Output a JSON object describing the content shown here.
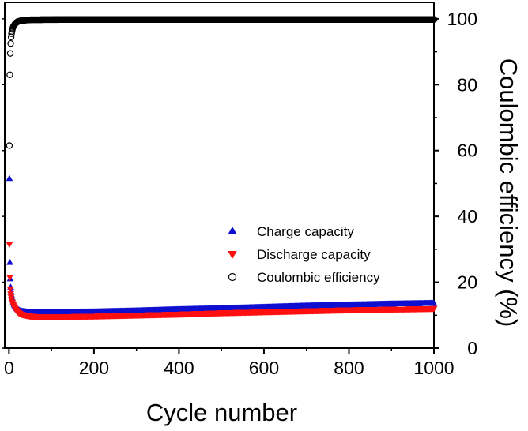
{
  "chart_data": {
    "type": "scatter",
    "title": "",
    "xlabel": "Cycle number",
    "ylabel_left": "",
    "ylabel_right": "Coulombic efficiency (%)",
    "xlim": [
      -10,
      1000
    ],
    "ylim_right": [
      0,
      105
    ],
    "ylim_left": [
      0,
      105
    ],
    "x_ticks": [
      0,
      200,
      400,
      600,
      800,
      1000
    ],
    "y_ticks_right": [
      0,
      20,
      40,
      60,
      80,
      100
    ],
    "left_axis_tick_labels": false,
    "grid": false,
    "legend_position": "right-center",
    "series": [
      {
        "name": "Charge capacity",
        "axis": "left",
        "marker": "triangle-up",
        "color": "#1010d0",
        "points": [
          [
            1,
            51.5
          ],
          [
            2,
            26
          ],
          [
            3,
            21
          ],
          [
            4,
            18.5
          ],
          [
            5,
            17
          ],
          [
            6,
            16
          ],
          [
            8,
            15
          ],
          [
            10,
            14
          ],
          [
            12,
            13.3
          ],
          [
            15,
            12.6
          ],
          [
            20,
            11.8
          ],
          [
            25,
            11.4
          ],
          [
            30,
            11.2
          ],
          [
            40,
            11
          ],
          [
            50,
            10.9
          ],
          [
            60,
            10.85
          ],
          [
            80,
            10.8
          ],
          [
            100,
            10.85
          ],
          [
            150,
            10.9
          ],
          [
            200,
            11
          ],
          [
            300,
            11.3
          ],
          [
            400,
            11.7
          ],
          [
            500,
            12
          ],
          [
            600,
            12.4
          ],
          [
            700,
            12.8
          ],
          [
            800,
            13.1
          ],
          [
            900,
            13.4
          ],
          [
            1000,
            13.6
          ]
        ]
      },
      {
        "name": "Discharge capacity",
        "axis": "left",
        "marker": "triangle-down",
        "color": "#ff1010",
        "points": [
          [
            1,
            31.5
          ],
          [
            2,
            21.5
          ],
          [
            3,
            18
          ],
          [
            4,
            16.5
          ],
          [
            5,
            15.5
          ],
          [
            6,
            14.8
          ],
          [
            8,
            14
          ],
          [
            10,
            13.2
          ],
          [
            12,
            12.5
          ],
          [
            15,
            11.8
          ],
          [
            20,
            11
          ],
          [
            25,
            10.5
          ],
          [
            30,
            10.2
          ],
          [
            40,
            9.9
          ],
          [
            50,
            9.7
          ],
          [
            60,
            9.6
          ],
          [
            80,
            9.5
          ],
          [
            100,
            9.5
          ],
          [
            150,
            9.6
          ],
          [
            200,
            9.7
          ],
          [
            300,
            10
          ],
          [
            400,
            10.3
          ],
          [
            500,
            10.7
          ],
          [
            600,
            11
          ],
          [
            700,
            11.3
          ],
          [
            800,
            11.6
          ],
          [
            900,
            11.8
          ],
          [
            1000,
            12
          ]
        ]
      },
      {
        "name": "Coulombic efficiency",
        "axis": "right",
        "marker": "circle-open",
        "color": "#000000",
        "points": [
          [
            1,
            61.5
          ],
          [
            2,
            83
          ],
          [
            3,
            89.5
          ],
          [
            4,
            92.5
          ],
          [
            5,
            94.5
          ],
          [
            6,
            95.5
          ],
          [
            7,
            96.2
          ],
          [
            8,
            96.8
          ],
          [
            9,
            97.2
          ],
          [
            10,
            97.6
          ],
          [
            12,
            98
          ],
          [
            14,
            98.4
          ],
          [
            16,
            98.7
          ],
          [
            18,
            98.9
          ],
          [
            20,
            99.1
          ],
          [
            25,
            99.3
          ],
          [
            30,
            99.5
          ],
          [
            40,
            99.6
          ],
          [
            50,
            99.7
          ],
          [
            100,
            99.75
          ],
          [
            200,
            99.8
          ],
          [
            300,
            99.8
          ],
          [
            400,
            99.8
          ],
          [
            500,
            99.8
          ],
          [
            600,
            99.8
          ],
          [
            700,
            99.8
          ],
          [
            800,
            99.8
          ],
          [
            900,
            99.8
          ],
          [
            1000,
            99.8
          ]
        ]
      }
    ]
  }
}
